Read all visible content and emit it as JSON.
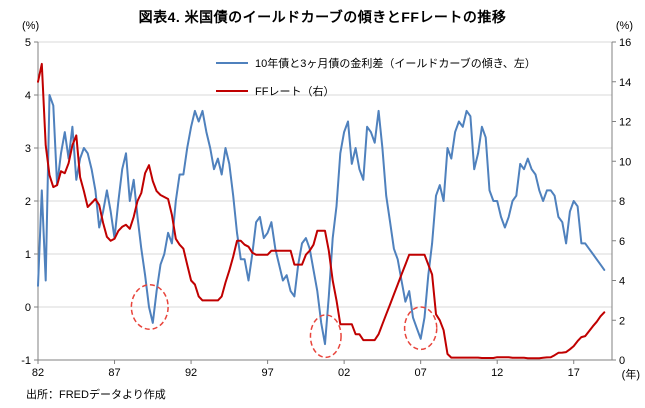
{
  "footer": {
    "source": "出所：FREDデータより作成"
  },
  "axes": {
    "left_unit": "(%)",
    "right_unit": "(%)",
    "x_unit": "(年)"
  },
  "chart_data": {
    "type": "line",
    "title": "図表4. 米国債のイールドカーブの傾きとFFレートの推移",
    "grid": true,
    "legend_position": "top-center-inside",
    "x_start": 1982,
    "x_step": 0.25,
    "x_range": [
      1982,
      2019.5
    ],
    "x_ticks": [
      {
        "value": 1982,
        "label": "82"
      },
      {
        "value": 1987,
        "label": "87"
      },
      {
        "value": 1992,
        "label": "92"
      },
      {
        "value": 1997,
        "label": "97"
      },
      {
        "value": 2002,
        "label": "02"
      },
      {
        "value": 2007,
        "label": "07"
      },
      {
        "value": 2012,
        "label": "12"
      },
      {
        "value": 2017,
        "label": "17"
      }
    ],
    "left_axis": {
      "min": -1,
      "max": 5,
      "ticks": [
        -1,
        0,
        1,
        2,
        3,
        4,
        5
      ]
    },
    "right_axis": {
      "min": 0,
      "max": 16,
      "ticks": [
        0,
        2,
        4,
        6,
        8,
        10,
        12,
        14,
        16
      ]
    },
    "series": [
      {
        "name": "10年債と3ヶ月債の金利差（イールドカーブの傾き、左）",
        "axis": "left",
        "color": "#4f81bd",
        "values": [
          0.4,
          2.2,
          0.5,
          4.0,
          3.8,
          2.3,
          2.9,
          3.3,
          2.8,
          3.4,
          2.4,
          2.8,
          3.0,
          2.9,
          2.6,
          2.2,
          1.5,
          1.8,
          2.2,
          1.8,
          1.3,
          2.0,
          2.6,
          2.9,
          2.0,
          2.4,
          1.7,
          1.1,
          0.6,
          0.0,
          -0.3,
          0.3,
          0.8,
          1.0,
          1.4,
          1.2,
          2.0,
          2.5,
          2.5,
          3.0,
          3.4,
          3.7,
          3.5,
          3.7,
          3.3,
          3.0,
          2.6,
          2.8,
          2.5,
          3.0,
          2.7,
          2.1,
          1.4,
          0.9,
          0.9,
          0.5,
          1.0,
          1.6,
          1.7,
          1.3,
          1.4,
          1.6,
          1.1,
          0.8,
          0.5,
          0.6,
          0.3,
          0.2,
          0.8,
          1.2,
          1.3,
          1.1,
          0.7,
          0.3,
          -0.3,
          -0.7,
          0.2,
          1.3,
          1.9,
          2.9,
          3.3,
          3.5,
          2.7,
          3.0,
          2.6,
          2.4,
          3.4,
          3.3,
          3.1,
          3.7,
          3.0,
          2.1,
          1.6,
          1.1,
          0.9,
          0.5,
          0.1,
          0.3,
          -0.2,
          -0.4,
          -0.6,
          -0.2,
          0.6,
          1.2,
          2.1,
          2.3,
          2.0,
          3.0,
          2.8,
          3.3,
          3.5,
          3.4,
          3.7,
          3.6,
          2.6,
          2.9,
          3.4,
          3.2,
          2.2,
          2.0,
          2.0,
          1.7,
          1.5,
          1.7,
          2.0,
          2.1,
          2.7,
          2.6,
          2.8,
          2.6,
          2.5,
          2.2,
          2.0,
          2.2,
          2.2,
          2.1,
          1.7,
          1.6,
          1.2,
          1.8,
          2.0,
          1.9,
          1.2,
          1.2,
          1.1,
          1.0,
          0.9,
          0.8,
          0.7
        ]
      },
      {
        "name": "FFレート（右）",
        "axis": "right",
        "color": "#c00000",
        "values": [
          14.0,
          14.9,
          10.8,
          9.3,
          8.7,
          8.8,
          9.5,
          9.4,
          9.9,
          10.8,
          11.3,
          9.2,
          8.5,
          7.7,
          7.9,
          8.1,
          7.8,
          6.9,
          6.2,
          6.0,
          6.1,
          6.5,
          6.7,
          6.8,
          6.6,
          7.2,
          8.0,
          8.4,
          9.4,
          9.8,
          9.0,
          8.5,
          8.3,
          8.2,
          8.1,
          7.3,
          6.1,
          5.8,
          5.6,
          4.8,
          4.0,
          3.8,
          3.2,
          3.0,
          3.0,
          3.0,
          3.0,
          3.0,
          3.2,
          3.9,
          4.5,
          5.2,
          6.0,
          6.0,
          5.8,
          5.7,
          5.4,
          5.3,
          5.3,
          5.3,
          5.3,
          5.5,
          5.5,
          5.5,
          5.5,
          5.5,
          5.5,
          4.8,
          4.8,
          4.8,
          5.3,
          5.5,
          5.8,
          6.5,
          6.5,
          6.5,
          5.5,
          4.0,
          3.0,
          1.8,
          1.8,
          1.8,
          1.8,
          1.3,
          1.3,
          1.0,
          1.0,
          1.0,
          1.0,
          1.3,
          1.8,
          2.3,
          2.8,
          3.3,
          3.8,
          4.3,
          4.8,
          5.3,
          5.3,
          5.3,
          5.3,
          5.3,
          4.8,
          4.3,
          2.3,
          2.0,
          1.5,
          0.3,
          0.12,
          0.12,
          0.12,
          0.12,
          0.12,
          0.12,
          0.12,
          0.12,
          0.1,
          0.1,
          0.1,
          0.1,
          0.14,
          0.14,
          0.14,
          0.14,
          0.11,
          0.11,
          0.11,
          0.11,
          0.09,
          0.09,
          0.09,
          0.09,
          0.11,
          0.13,
          0.14,
          0.24,
          0.36,
          0.37,
          0.4,
          0.54,
          0.7,
          0.95,
          1.15,
          1.2,
          1.45,
          1.7,
          1.92,
          2.2,
          2.4
        ]
      }
    ],
    "annotations": [
      {
        "type": "ellipse",
        "x": 1989.3,
        "y": 0.0,
        "rx_years": 1.2,
        "ry": 0.42,
        "color": "#e8453c",
        "style": "dashed"
      },
      {
        "type": "ellipse",
        "x": 2000.8,
        "y": -0.55,
        "rx_years": 1.0,
        "ry": 0.4,
        "color": "#e8453c",
        "style": "dashed"
      },
      {
        "type": "ellipse",
        "x": 2007.0,
        "y": -0.4,
        "rx_years": 1.05,
        "ry": 0.4,
        "color": "#e8453c",
        "style": "dashed"
      }
    ]
  }
}
